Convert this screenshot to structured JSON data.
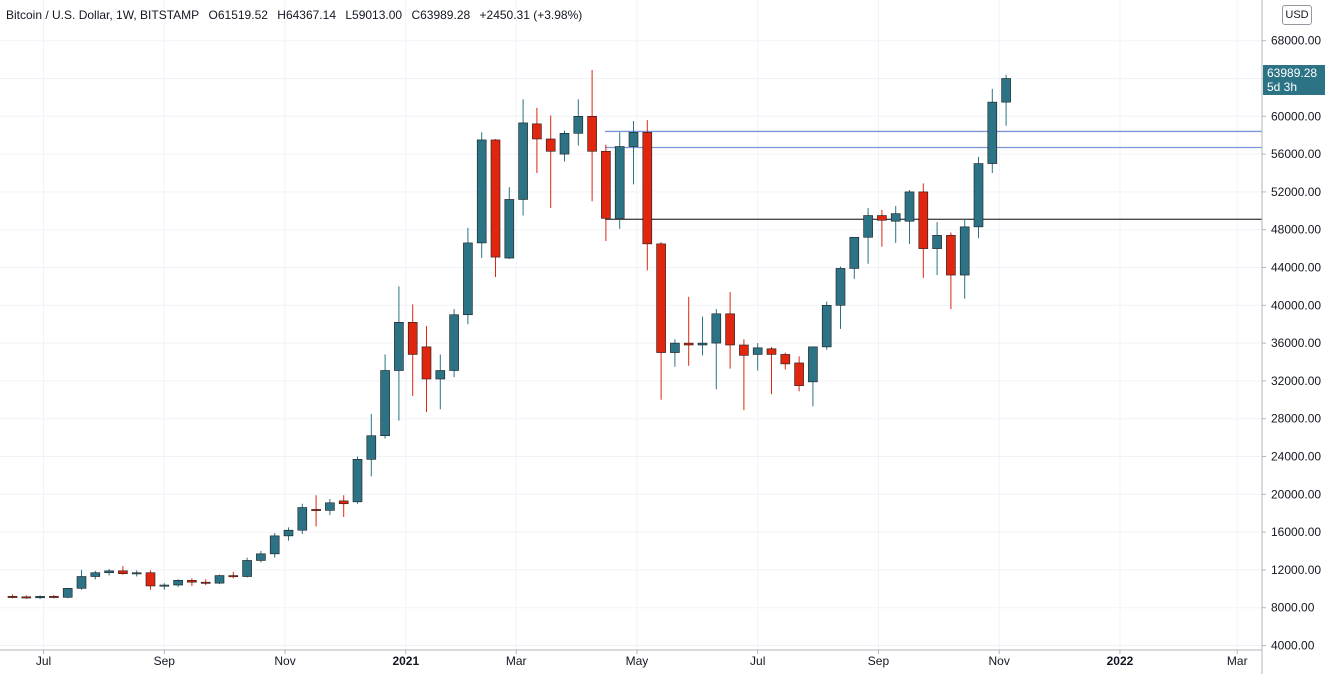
{
  "legend": {
    "symbol": "Bitcoin / U.S. Dollar, 1W, BITSTAMP",
    "open_label": "O",
    "open": "61519.52",
    "high_label": "H",
    "high": "64367.14",
    "low_label": "L",
    "low": "59013.00",
    "close_label": "C",
    "close": "63989.28",
    "change": "+2450.31 (+3.98%)"
  },
  "currency_button": "USD",
  "last_price_tag": {
    "price": "63989.28",
    "countdown": "5d 3h"
  },
  "colors": {
    "up": "#2b7385",
    "down": "#e0260e",
    "grid": "#f0f3fa",
    "level_blue": "#7a95d9",
    "level_gray": "#4a4a4a"
  },
  "chart_data": {
    "type": "candlestick",
    "title": "Bitcoin / U.S. Dollar, 1W, BITSTAMP",
    "y_ticks": [
      "68000.00",
      "64000.00",
      "60000.00",
      "56000.00",
      "52000.00",
      "48000.00",
      "44000.00",
      "40000.00",
      "36000.00",
      "32000.00",
      "28000.00",
      "24000.00",
      "20000.00",
      "16000.00",
      "12000.00",
      "8000.00",
      "4000.00"
    ],
    "y_tick_values": [
      68000,
      64000,
      60000,
      56000,
      52000,
      48000,
      44000,
      40000,
      36000,
      32000,
      28000,
      24000,
      20000,
      16000,
      12000,
      8000,
      4000
    ],
    "x_ticks": [
      {
        "label": "Jul",
        "idx": 2.25,
        "bold": false
      },
      {
        "label": "Sep",
        "idx": 11,
        "bold": false
      },
      {
        "label": "Nov",
        "idx": 19.75,
        "bold": false
      },
      {
        "label": "2021",
        "idx": 28.5,
        "bold": true
      },
      {
        "label": "Mar",
        "idx": 36.5,
        "bold": false
      },
      {
        "label": "May",
        "idx": 45.25,
        "bold": false
      },
      {
        "label": "Jul",
        "idx": 54,
        "bold": false
      },
      {
        "label": "Sep",
        "idx": 62.75,
        "bold": false
      },
      {
        "label": "Nov",
        "idx": 71.5,
        "bold": false
      },
      {
        "label": "2022",
        "idx": 80.25,
        "bold": true
      },
      {
        "label": "Mar",
        "idx": 88.75,
        "bold": false
      }
    ],
    "horizontal_levels": [
      {
        "value": 58400,
        "color": "blue"
      },
      {
        "value": 56700,
        "color": "blue"
      },
      {
        "value": 49100,
        "color": "gray"
      }
    ],
    "ohlc": [
      [
        9200,
        9400,
        9000,
        9150
      ],
      [
        9150,
        9300,
        8950,
        9050
      ],
      [
        9050,
        9300,
        8900,
        9200
      ],
      [
        9200,
        9350,
        9000,
        9100
      ],
      [
        9100,
        10100,
        9000,
        10050
      ],
      [
        10050,
        12000,
        9900,
        11300
      ],
      [
        11300,
        11900,
        11000,
        11700
      ],
      [
        11700,
        12100,
        11400,
        11900
      ],
      [
        11900,
        12400,
        11500,
        11600
      ],
      [
        11600,
        11950,
        11300,
        11700
      ],
      [
        11700,
        11950,
        9900,
        10300
      ],
      [
        10300,
        10600,
        9900,
        10400
      ],
      [
        10400,
        11000,
        10200,
        10900
      ],
      [
        10900,
        11100,
        10300,
        10700
      ],
      [
        10700,
        11000,
        10400,
        10600
      ],
      [
        10600,
        11500,
        10500,
        11400
      ],
      [
        11400,
        11800,
        11100,
        11300
      ],
      [
        11300,
        13300,
        11200,
        13000
      ],
      [
        13000,
        14000,
        12800,
        13700
      ],
      [
        13700,
        15900,
        13300,
        15600
      ],
      [
        15600,
        16500,
        15100,
        16200
      ],
      [
        16200,
        19000,
        15800,
        18600
      ],
      [
        18400,
        19900,
        16600,
        18300
      ],
      [
        18300,
        19500,
        17800,
        19100
      ],
      [
        19300,
        19900,
        17600,
        19000
      ],
      [
        19200,
        24000,
        19000,
        23700
      ],
      [
        23700,
        28500,
        21900,
        26200
      ],
      [
        26200,
        34800,
        25900,
        33100
      ],
      [
        33100,
        42000,
        27800,
        38200
      ],
      [
        38200,
        40100,
        30400,
        34800
      ],
      [
        35600,
        37800,
        28700,
        32200
      ],
      [
        32200,
        34800,
        29000,
        33100
      ],
      [
        33100,
        39600,
        32400,
        39000
      ],
      [
        39000,
        48200,
        38000,
        46600
      ],
      [
        46600,
        58300,
        45000,
        57500
      ],
      [
        57500,
        57600,
        43000,
        45100
      ],
      [
        45000,
        52500,
        44900,
        51200
      ],
      [
        51200,
        61800,
        49500,
        59300
      ],
      [
        59200,
        60900,
        54000,
        57600
      ],
      [
        57600,
        60100,
        50300,
        56300
      ],
      [
        56000,
        58500,
        55200,
        58200
      ],
      [
        58200,
        61800,
        56900,
        60000
      ],
      [
        60000,
        64900,
        51000,
        56300
      ],
      [
        56300,
        57000,
        46800,
        49200
      ],
      [
        49200,
        58300,
        48100,
        56800
      ],
      [
        56800,
        59500,
        52800,
        58300
      ],
      [
        58300,
        59600,
        43700,
        46500
      ],
      [
        46500,
        46700,
        30000,
        35000
      ],
      [
        35000,
        36400,
        33500,
        36000
      ],
      [
        36000,
        40900,
        33600,
        35800
      ],
      [
        35800,
        38800,
        34700,
        36000
      ],
      [
        36000,
        39600,
        31100,
        39100
      ],
      [
        39100,
        41400,
        33300,
        35800
      ],
      [
        35800,
        36400,
        28900,
        34700
      ],
      [
        34800,
        36000,
        33100,
        35500
      ],
      [
        35400,
        35600,
        30600,
        34800
      ],
      [
        34800,
        35000,
        33200,
        33800
      ],
      [
        33900,
        34600,
        30900,
        31500
      ],
      [
        31900,
        35500,
        29300,
        35600
      ],
      [
        35600,
        40400,
        35300,
        40000
      ],
      [
        40000,
        44100,
        37500,
        43900
      ],
      [
        43900,
        46900,
        42800,
        47200
      ],
      [
        47200,
        50300,
        44400,
        49500
      ],
      [
        49500,
        50100,
        46200,
        49000
      ],
      [
        48900,
        50500,
        46600,
        49700
      ],
      [
        48900,
        52200,
        46500,
        52000
      ],
      [
        52000,
        52900,
        42900,
        46000
      ],
      [
        46000,
        48800,
        43200,
        47400
      ],
      [
        47400,
        47700,
        39600,
        43200
      ],
      [
        43200,
        49100,
        40700,
        48300
      ],
      [
        48300,
        55700,
        47100,
        55000
      ],
      [
        55000,
        62900,
        54000,
        61500
      ],
      [
        61500,
        64400,
        59000,
        64000
      ]
    ]
  }
}
